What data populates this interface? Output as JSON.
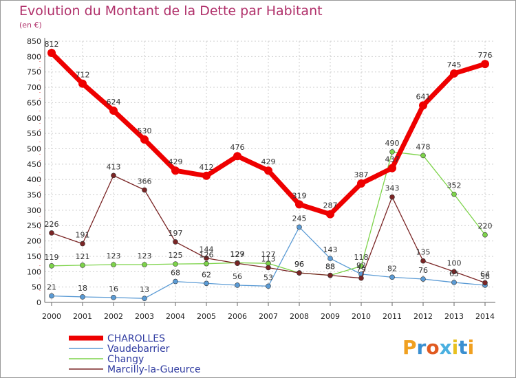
{
  "colors": {
    "grid": "#cccccc",
    "axis": "#666666",
    "accent": "#b0306a"
  },
  "chart_data": {
    "type": "line",
    "title": "Evolution du Montant de la Dette par Habitant",
    "subtitle": "(en €)",
    "x": [
      "2000",
      "2001",
      "2002",
      "2003",
      "2004",
      "2005",
      "2006",
      "2007",
      "2008",
      "2009",
      "2010",
      "2011",
      "2012",
      "2013",
      "2014"
    ],
    "ylim": [
      0,
      850
    ],
    "yticks": [
      0,
      50,
      100,
      150,
      200,
      250,
      300,
      350,
      400,
      450,
      500,
      550,
      600,
      650,
      700,
      750,
      800,
      850
    ],
    "grid": true,
    "legend_position": "bottom-left",
    "series": [
      {
        "name": "CHAROLLES",
        "color": "#ee0000",
        "values": [
          812,
          712,
          624,
          530,
          429,
          412,
          476,
          429,
          319,
          287,
          387,
          437,
          641,
          745,
          776
        ]
      },
      {
        "name": "Vaudebarrier",
        "color": "#5b9bd5",
        "values": [
          21,
          18,
          16,
          13,
          68,
          62,
          56,
          53,
          245,
          143,
          92,
          82,
          76,
          65,
          56
        ]
      },
      {
        "name": "Changy",
        "color": "#7dd34a",
        "values": [
          119,
          121,
          123,
          123,
          125,
          126,
          129,
          127,
          96,
          88,
          118,
          490,
          478,
          352,
          220
        ]
      },
      {
        "name": "Marcilly-la-Gueurce",
        "color": "#7a2525",
        "values": [
          226,
          191,
          413,
          366,
          197,
          144,
          127,
          113,
          96,
          88,
          79,
          343,
          135,
          100,
          64
        ]
      }
    ]
  },
  "logo": {
    "text": "Proxiti"
  }
}
